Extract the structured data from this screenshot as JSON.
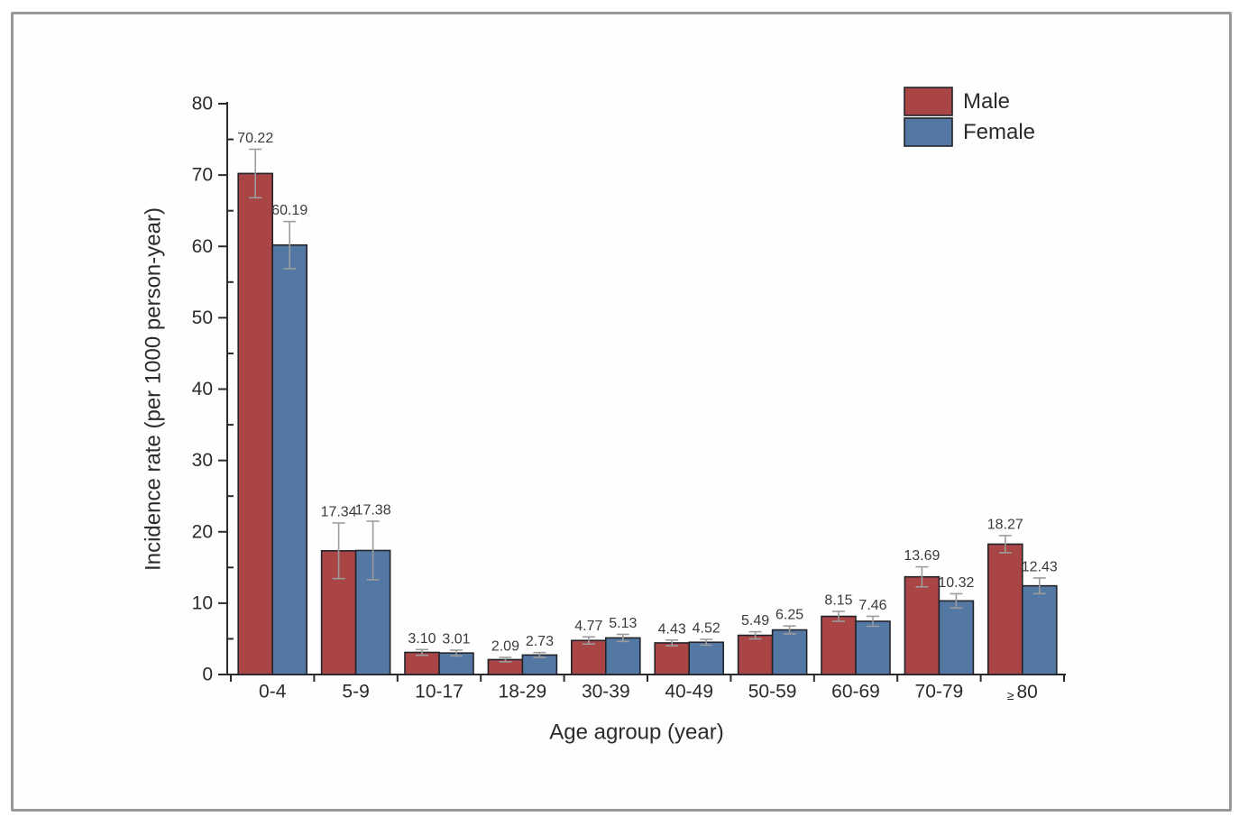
{
  "figure": {
    "frame_border_color": "#999999",
    "background_color": "#fefefe"
  },
  "chart_data": {
    "type": "bar",
    "title": "",
    "categories": [
      "0-4",
      "5-9",
      "10-17",
      "18-29",
      "30-39",
      "40-49",
      "50-59",
      "60-69",
      "70-79",
      "≥ 80"
    ],
    "series": [
      {
        "name": "Male",
        "color": "#A94545",
        "values": [
          70.22,
          17.34,
          3.1,
          2.09,
          4.77,
          4.43,
          5.49,
          8.15,
          13.69,
          18.27
        ],
        "labels": [
          "70.22",
          "17.34",
          "3.10",
          "2.09",
          "4.77",
          "4.43",
          "5.49",
          "8.15",
          "13.69",
          "18.27"
        ],
        "errors": [
          3.4,
          3.9,
          0.4,
          0.3,
          0.5,
          0.4,
          0.5,
          0.7,
          1.4,
          1.2
        ]
      },
      {
        "name": "Female",
        "color": "#5478A4",
        "values": [
          60.19,
          17.38,
          3.01,
          2.73,
          5.13,
          4.52,
          6.25,
          7.46,
          10.32,
          12.43
        ],
        "labels": [
          "60.19",
          "17.38",
          "3.01",
          "2.73",
          "5.13",
          "4.52",
          "6.25",
          "7.46",
          "10.32",
          "12.43"
        ],
        "errors": [
          3.3,
          4.1,
          0.4,
          0.35,
          0.5,
          0.4,
          0.55,
          0.7,
          1.0,
          1.1
        ]
      }
    ],
    "xlabel": "Age agroup (year)",
    "ylabel": "Incidence rate  (per 1000 person-year)",
    "ylim": [
      0,
      80
    ],
    "ytick_major": 10,
    "ytick_minor": 5,
    "grid": false,
    "legend": {
      "position": "top-right",
      "entries": [
        "Male",
        "Female"
      ]
    },
    "styles": {
      "bar_border_color": "#23232B",
      "error_bar_color": "#9C9C9C",
      "axis_color": "#2B2B2B",
      "tick_text_color": "#2B2B2B",
      "value_label_color": "#3A3A3A"
    }
  }
}
